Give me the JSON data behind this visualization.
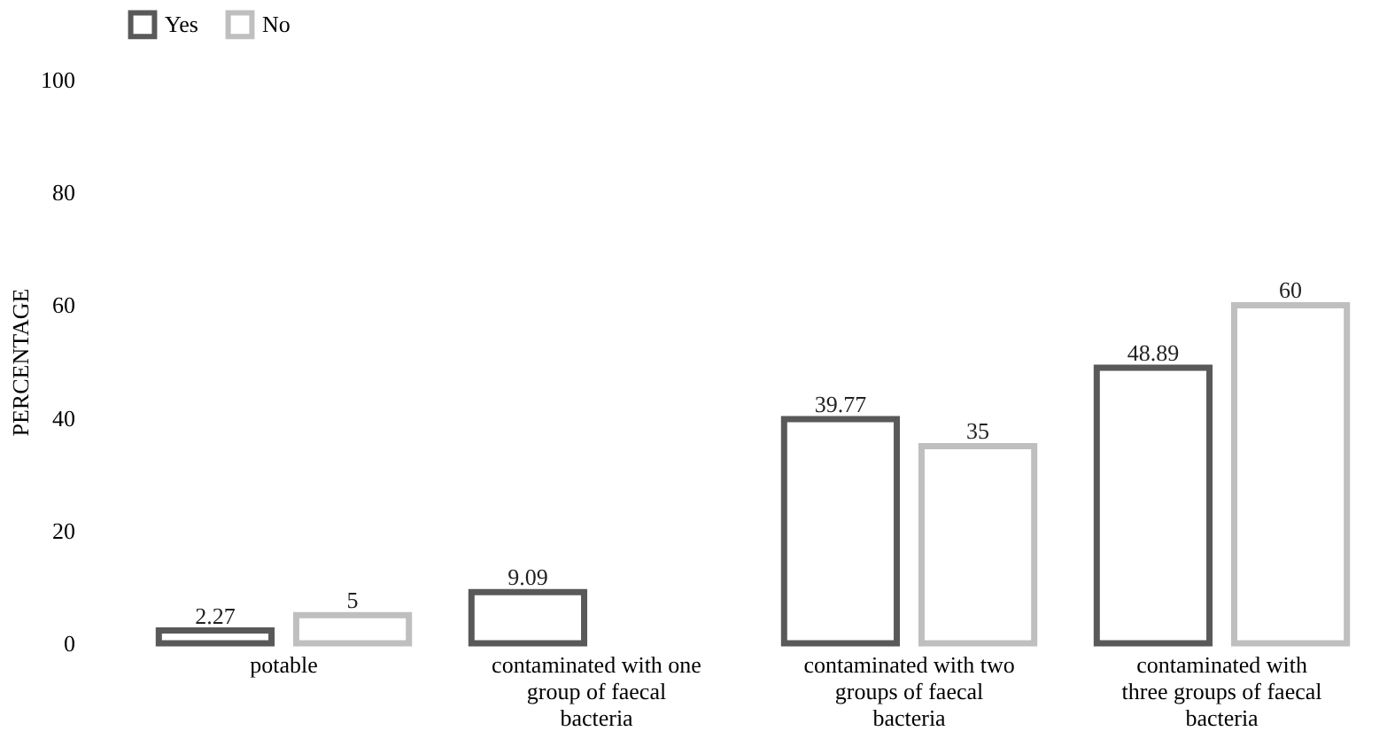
{
  "chart_data": {
    "type": "bar",
    "ylabel": "PERCENTAGE",
    "categories": [
      "potable",
      "contaminated with one group of faecal bacteria",
      "contaminated with two groups of faecal bacteria",
      "contaminated with three groups of faecal bacteria"
    ],
    "series": [
      {
        "name": "Yes",
        "color": "#595959",
        "values": [
          2.27,
          9.09,
          39.77,
          48.89
        ],
        "value_labels": [
          "2.27",
          "9.09",
          "39.77",
          "48.89"
        ]
      },
      {
        "name": "No",
        "color": "#bfbfbf",
        "values": [
          5,
          null,
          35,
          60
        ],
        "value_labels": [
          "5",
          null,
          "35",
          "60"
        ]
      }
    ],
    "ylim": [
      0,
      100
    ],
    "yticks": [
      0,
      20,
      40,
      60,
      80,
      100
    ],
    "grid": false,
    "legend": "top"
  }
}
